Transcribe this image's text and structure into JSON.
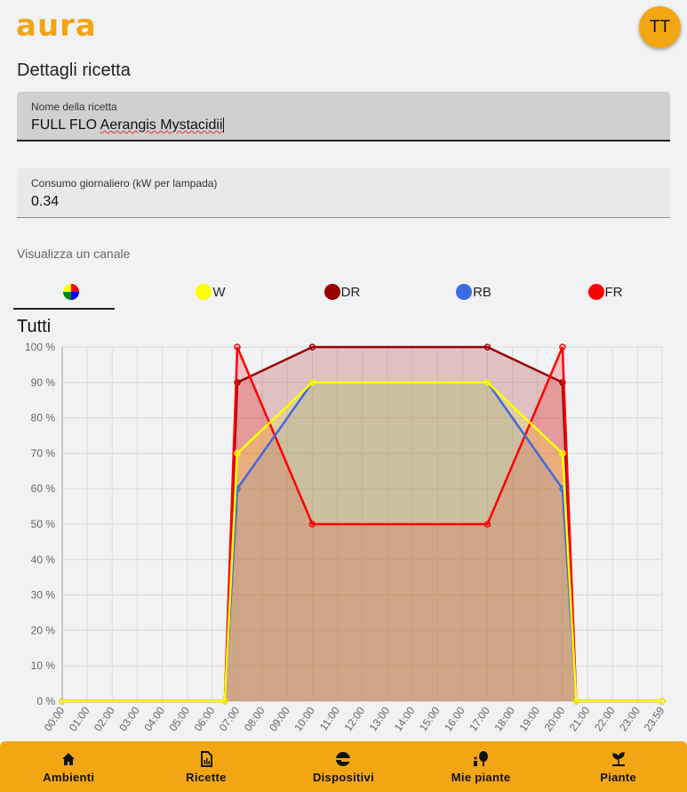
{
  "header": {
    "logo": "aura",
    "avatar": "TT"
  },
  "page_title": "Dettagli ricetta",
  "recipe_name": {
    "label": "Nome della ricetta",
    "value_prefix": "FULL FLO ",
    "value_misspelled": "Aerangis Mystacidii"
  },
  "consumption": {
    "label": "Consumo giornaliero (kW per lampada)",
    "value": "0.34"
  },
  "channel_label": "Visualizza un canale",
  "tabs": [
    {
      "label": "",
      "color": "multi"
    },
    {
      "label": "W",
      "color": "#ffff00"
    },
    {
      "label": "DR",
      "color": "#990000"
    },
    {
      "label": "RB",
      "color": "#4169e1"
    },
    {
      "label": "FR",
      "color": "#ff0000"
    }
  ],
  "chart_data": {
    "type": "area",
    "title": "Tutti",
    "x_ticks": [
      "00:00",
      "01:00",
      "02:00",
      "03:00",
      "04:00",
      "05:00",
      "06:00",
      "07:00",
      "08:00",
      "09:00",
      "10:00",
      "11:00",
      "12:00",
      "13:00",
      "14:00",
      "15:00",
      "16:00",
      "17:00",
      "18:00",
      "19:00",
      "20:00",
      "21:00",
      "22:00",
      "23:00",
      "23:59"
    ],
    "y_ticks": [
      "0 %",
      "10 %",
      "20 %",
      "30 %",
      "40 %",
      "50 %",
      "60 %",
      "70 %",
      "80 %",
      "90 %",
      "100 %"
    ],
    "ylim": [
      0,
      100
    ],
    "x_hours": [
      0,
      6.5,
      7,
      10,
      17,
      20,
      20.55,
      23.983
    ],
    "series": [
      {
        "name": "DR",
        "color": "#990000",
        "values": [
          0,
          0,
          90,
          100,
          100,
          90,
          0,
          0
        ]
      },
      {
        "name": "FR",
        "color": "#ff0000",
        "values": [
          0,
          0,
          100,
          50,
          50,
          100,
          0,
          0
        ]
      },
      {
        "name": "RB",
        "color": "#4169e1",
        "values": [
          0,
          0,
          60,
          90,
          90,
          60,
          0,
          0
        ]
      },
      {
        "name": "W",
        "color": "#ffff00",
        "values": [
          0,
          0,
          70,
          90,
          90,
          70,
          0,
          0
        ]
      }
    ]
  },
  "nav": [
    {
      "label": "Ambienti",
      "icon": "home-icon"
    },
    {
      "label": "Ricette",
      "icon": "recipe-icon"
    },
    {
      "label": "Dispositivi",
      "icon": "device-icon"
    },
    {
      "label": "Mie piante",
      "icon": "my-plants-icon"
    },
    {
      "label": "Piante",
      "icon": "plant-icon"
    }
  ]
}
